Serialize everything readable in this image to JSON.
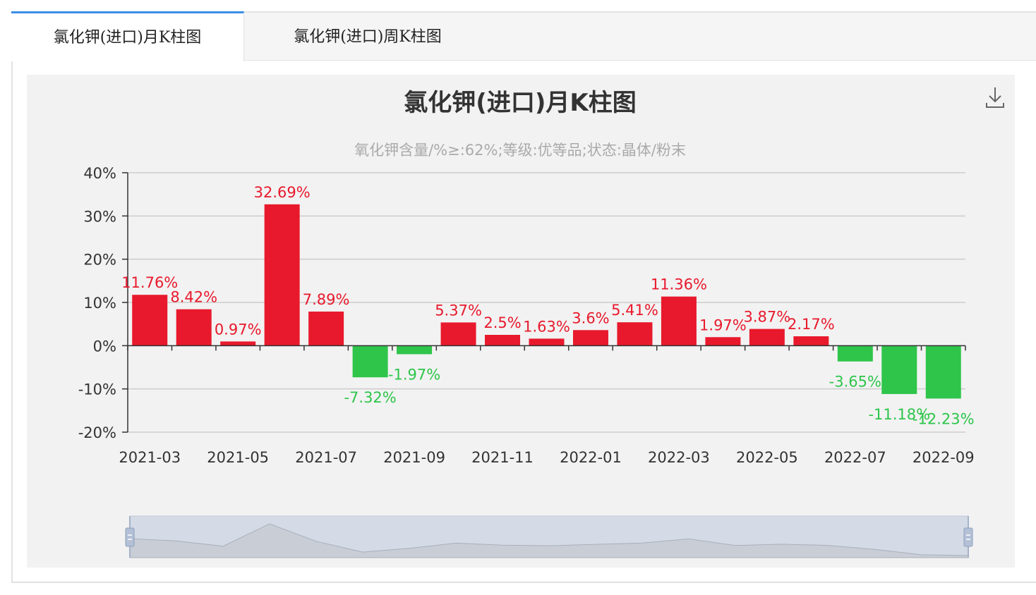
{
  "tabs": [
    {
      "label": "氯化钾(进口)月K柱图",
      "active": true
    },
    {
      "label": "氯化钾(进口)周K柱图",
      "active": false
    }
  ],
  "toolbox": {
    "download_icon": "download-icon"
  },
  "colors": {
    "up": "#e8192c",
    "down": "#2ec54a",
    "title": "#333333",
    "subtitle": "#aaaaaa",
    "axis": "#333333",
    "grid": "#cccccc"
  },
  "chart_data": {
    "type": "bar",
    "title": "氯化钾(进口)月K柱图",
    "subtitle": "氧化钾含量/%≥:62%;等级:优等品;状态:晶体/粉末",
    "categories": [
      "2021-03",
      "2021-04",
      "2021-05",
      "2021-06",
      "2021-07",
      "2021-08",
      "2021-09",
      "2021-10",
      "2021-11",
      "2021-12",
      "2022-01",
      "2022-02",
      "2022-03",
      "2022-04",
      "2022-05",
      "2022-06",
      "2022-07",
      "2022-08",
      "2022-09"
    ],
    "values": [
      11.76,
      8.42,
      0.97,
      32.69,
      7.89,
      -7.32,
      -1.97,
      5.37,
      2.5,
      1.63,
      3.6,
      5.41,
      11.36,
      1.97,
      3.87,
      2.17,
      -3.65,
      -11.18,
      -12.23
    ],
    "data_labels": [
      "11.76%",
      "8.42%",
      "0.97%",
      "32.69%",
      "7.89%",
      "-7.32%",
      "-1.97%",
      "5.37%",
      "2.5%",
      "1.63%",
      "3.6%",
      "5.41%",
      "11.36%",
      "1.97%",
      "3.87%",
      "2.17%",
      "-3.65%",
      "-11.18%",
      "-12.23%"
    ],
    "x_tick_labels": [
      "2021-03",
      "2021-05",
      "2021-07",
      "2021-09",
      "2021-11",
      "2022-01",
      "2022-03",
      "2022-05",
      "2022-07",
      "2022-09"
    ],
    "y_tick_labels": [
      "40%",
      "30%",
      "20%",
      "10%",
      "0%",
      "-10%",
      "-20%"
    ],
    "ylim": [
      -20,
      40
    ],
    "grid": true,
    "datazoom": {
      "present": true
    }
  }
}
